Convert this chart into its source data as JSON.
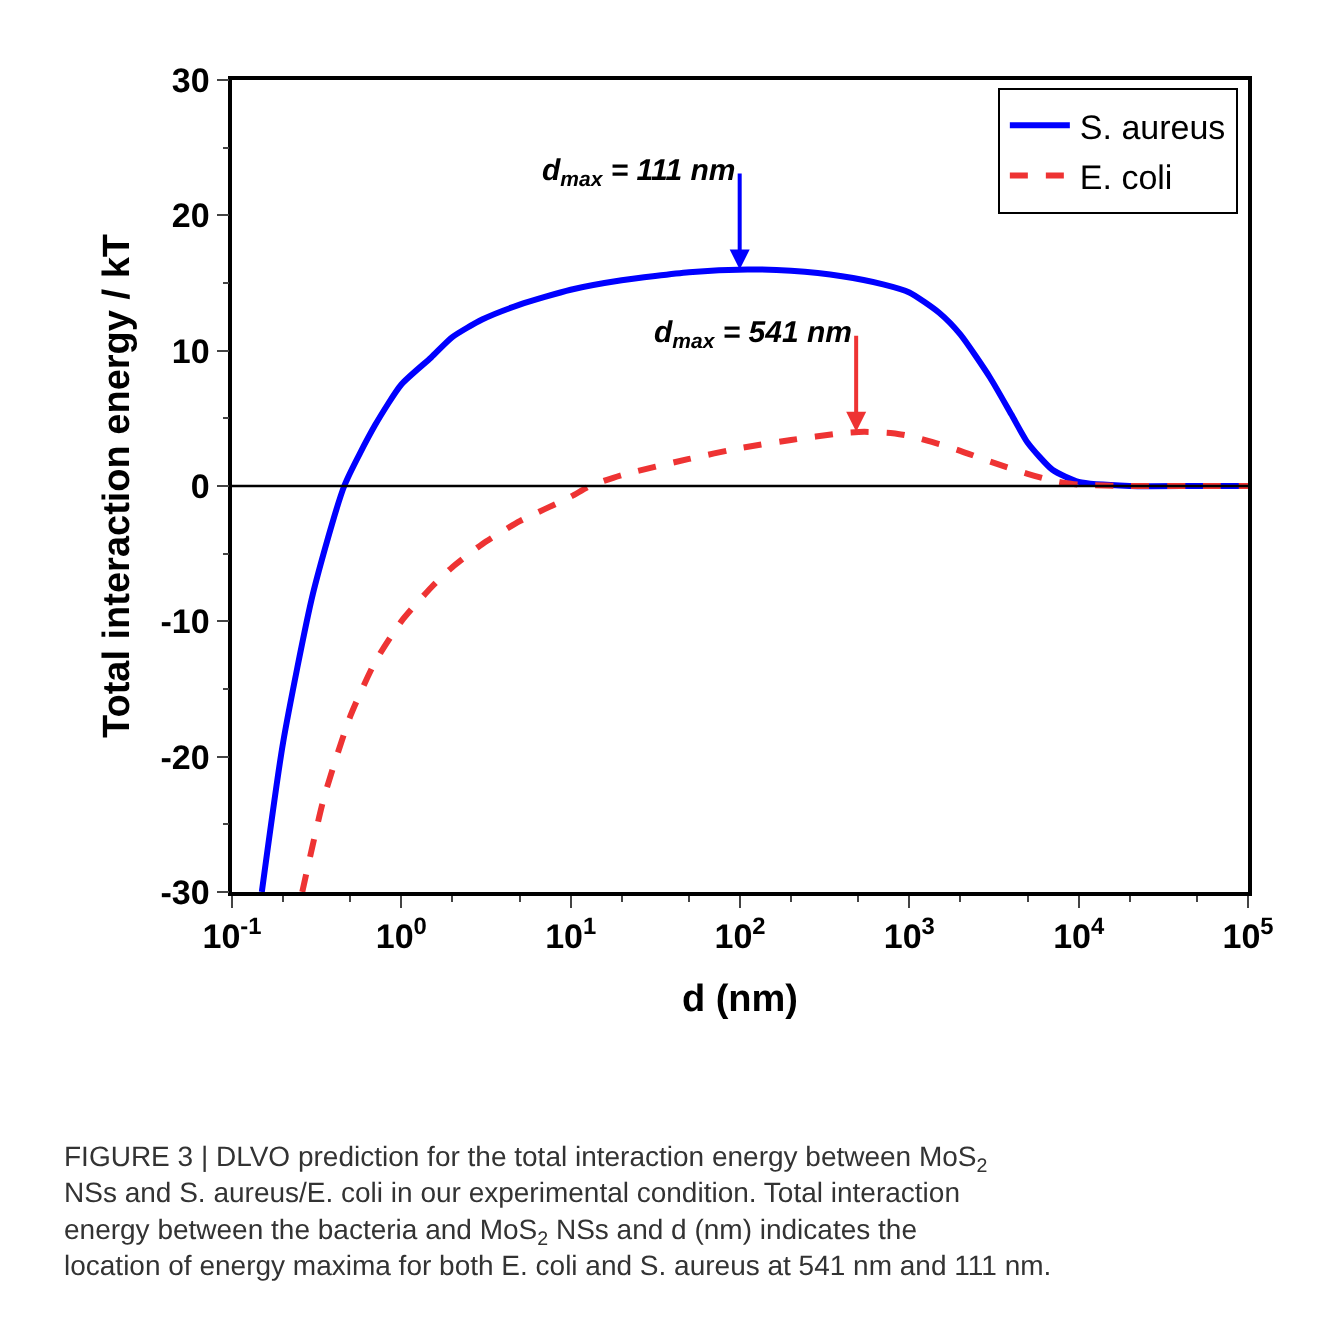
{
  "chart_data": {
    "type": "line",
    "xlabel": "d (nm)",
    "ylabel": "Total interaction energy / kT",
    "log": "x",
    "xlim": [
      0.1,
      100000
    ],
    "xticks": [
      {
        "value": 0.1,
        "label": "10$^{-1}$"
      },
      {
        "value": 1,
        "label": "10$^{0}$"
      },
      {
        "value": 10,
        "label": "10$^{1}$"
      },
      {
        "value": 100,
        "label": "10$^{2}$"
      },
      {
        "value": 1000,
        "label": "10$^{3}$"
      },
      {
        "value": 10000,
        "label": "10$^{4}$"
      },
      {
        "value": 100000,
        "label": "10$^{5}$"
      }
    ],
    "ylim": [
      -30,
      30
    ],
    "yticks": [
      -30,
      -20,
      -10,
      0,
      10,
      20,
      30
    ],
    "legend": "top right",
    "series": [
      {
        "name": "S. aureus",
        "color": "#0000ff",
        "line_style": "solid",
        "x": [
          0.15,
          0.2,
          0.3,
          0.46,
          0.7,
          1,
          1.5,
          2,
          3,
          5,
          10,
          20,
          50,
          111,
          200,
          400,
          700,
          1000,
          1500,
          2000,
          3000,
          4000,
          5000,
          7000,
          10000,
          20000,
          50000,
          100000
        ],
        "values": [
          -30,
          -19,
          -8,
          0,
          4.5,
          7.5,
          9.5,
          11,
          12.3,
          13.4,
          14.5,
          15.2,
          15.8,
          16,
          15.9,
          15.5,
          14.9,
          14.3,
          12.8,
          11.2,
          8,
          5.3,
          3.2,
          1.2,
          0.3,
          0,
          0,
          0
        ]
      },
      {
        "name": "E. coli",
        "color": "#ee3333",
        "line_style": "dashed",
        "x": [
          0.26,
          0.35,
          0.5,
          0.7,
          1,
          1.5,
          2,
          3,
          5,
          10,
          13,
          20,
          50,
          100,
          200,
          400,
          541,
          800,
          1000,
          1500,
          2000,
          3000,
          5000,
          7000,
          10000,
          20000,
          50000,
          100000
        ],
        "values": [
          -30,
          -23,
          -17,
          -13,
          -10,
          -7.5,
          -6,
          -4.3,
          -2.6,
          -0.8,
          0,
          0.8,
          2,
          2.8,
          3.4,
          3.9,
          4,
          3.9,
          3.7,
          3.1,
          2.6,
          1.8,
          0.9,
          0.4,
          0.1,
          0,
          0,
          0
        ]
      }
    ],
    "ref_lines": [
      {
        "axis": "y",
        "value": 0,
        "color": "#000000"
      }
    ],
    "annotations": [
      {
        "text": "d$_{max}$ = 111 nm",
        "x": 111,
        "y": 16
      },
      {
        "text": "d$_{max}$ = 541 nm",
        "x": 541,
        "y": 4
      },
      "FIGURE 3 | DLVO prediction for the total interaction energy between MoS$_{2}$ NSs and S. aureus/E. coli in our experimental condition. Total interaction energy between the bacteria and MoS$_{2}$ NSs and d (nm) indicates the location of energy maxima for both E. coli and S. aureus at 541 nm and 111 nm."
    ]
  }
}
